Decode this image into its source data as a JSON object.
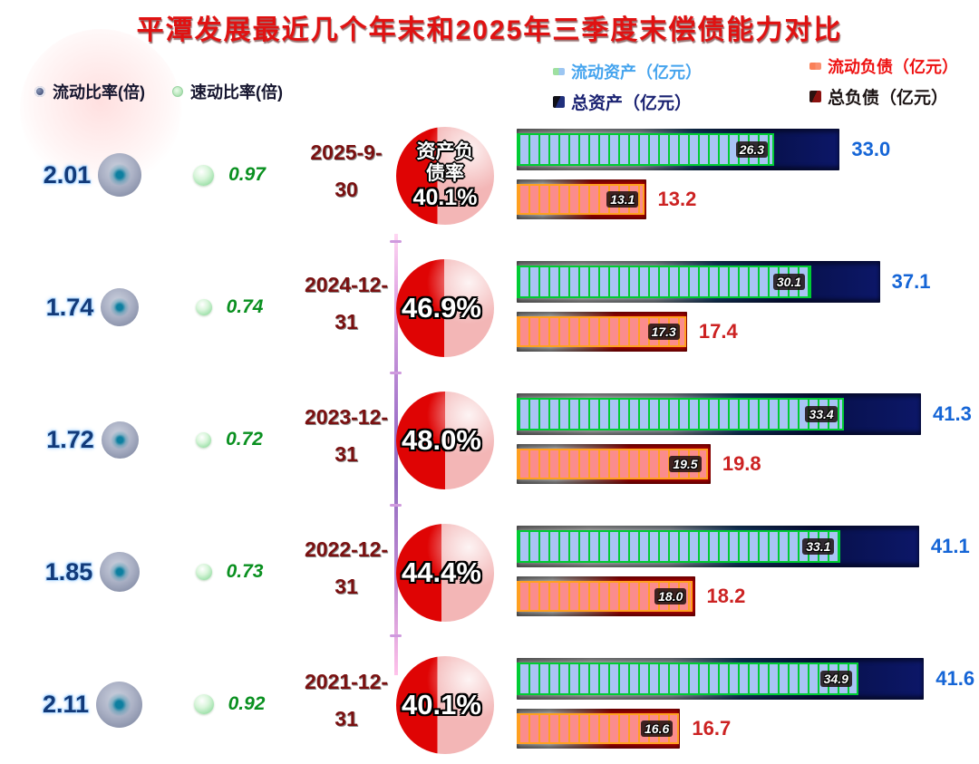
{
  "title": "平潭发展最近几个年末和2025年三季度末偿债能力对比",
  "legend": {
    "current_ratio": "流动比率(倍)",
    "quick_ratio": "速动比率(倍)",
    "current_assets": "流动资产（亿元）",
    "total_assets": "总资产（亿元）",
    "current_liabilities": "流动负债（亿元）",
    "total_liabilities": "总负债（亿元）"
  },
  "colors": {
    "title_red": "#e01212",
    "total_assets_bar": "#0c1768",
    "current_assets_fill": "#a9c4f4",
    "current_assets_stripe": "#00cc33",
    "total_liabilities_bar": "#cc0202",
    "current_liabilities_fill": "#fb8c8c",
    "current_liabilities_stripe": "#ffa020",
    "pie_red": "#df0404",
    "pie_pink": "#f3b6b6",
    "quick_ratio_green": "#0a9020",
    "current_ratio_navy": "#123a7a",
    "date_maroon": "#7a1010",
    "asset_total_label_blue": "#1565d6",
    "liab_total_label_red": "#cc2222"
  },
  "rows": [
    {
      "date_line1": "2025-9-",
      "date_line2": "30",
      "current_ratio": "2.01",
      "quick_ratio": "0.97",
      "pie_caption_line1": "资产负",
      "pie_caption_line2": "债率",
      "debt_ratio": "40.1%",
      "current_assets": "26.3",
      "total_assets": "33.0",
      "current_liabilities": "13.1",
      "total_liabilities": "13.2"
    },
    {
      "date_line1": "2024-12-",
      "date_line2": "31",
      "current_ratio": "1.74",
      "quick_ratio": "0.74",
      "pie_caption_line1": "",
      "pie_caption_line2": "",
      "debt_ratio": "46.9%",
      "current_assets": "30.1",
      "total_assets": "37.1",
      "current_liabilities": "17.3",
      "total_liabilities": "17.4"
    },
    {
      "date_line1": "2023-12-",
      "date_line2": "31",
      "current_ratio": "1.72",
      "quick_ratio": "0.72",
      "pie_caption_line1": "",
      "pie_caption_line2": "",
      "debt_ratio": "48.0%",
      "current_assets": "33.4",
      "total_assets": "41.3",
      "current_liabilities": "19.5",
      "total_liabilities": "19.8"
    },
    {
      "date_line1": "2022-12-",
      "date_line2": "31",
      "current_ratio": "1.85",
      "quick_ratio": "0.73",
      "pie_caption_line1": "",
      "pie_caption_line2": "",
      "debt_ratio": "44.4%",
      "current_assets": "33.1",
      "total_assets": "41.1",
      "current_liabilities": "18.0",
      "total_liabilities": "18.2"
    },
    {
      "date_line1": "2021-12-",
      "date_line2": "31",
      "current_ratio": "2.11",
      "quick_ratio": "0.92",
      "pie_caption_line1": "",
      "pie_caption_line2": "",
      "debt_ratio": "40.1%",
      "current_assets": "34.9",
      "total_assets": "41.6",
      "current_liabilities": "16.6",
      "total_liabilities": "16.7"
    }
  ],
  "chart_data": {
    "type": "bar",
    "title": "平潭发展最近几个年末和2025年三季度末偿债能力对比",
    "categories": [
      "2025-9-30",
      "2024-12-31",
      "2023-12-31",
      "2022-12-31",
      "2021-12-31"
    ],
    "series": [
      {
        "name": "流动比率(倍)",
        "values": [
          2.01,
          1.74,
          1.72,
          1.85,
          2.11
        ]
      },
      {
        "name": "速动比率(倍)",
        "values": [
          0.97,
          0.74,
          0.72,
          0.73,
          0.92
        ]
      },
      {
        "name": "资产负债率",
        "values": [
          40.1,
          46.9,
          48.0,
          44.4,
          40.1
        ],
        "unit": "%"
      },
      {
        "name": "流动资产（亿元）",
        "values": [
          26.3,
          30.1,
          33.4,
          33.1,
          34.9
        ]
      },
      {
        "name": "总资产（亿元）",
        "values": [
          33.0,
          37.1,
          41.3,
          41.1,
          41.6
        ]
      },
      {
        "name": "流动负债（亿元）",
        "values": [
          13.1,
          17.3,
          19.5,
          18.0,
          16.6
        ]
      },
      {
        "name": "总负债（亿元）",
        "values": [
          13.2,
          17.4,
          19.8,
          18.2,
          16.7
        ]
      }
    ],
    "orientation": "horizontal",
    "xlim": [
      0,
      42.5
    ],
    "grid": false,
    "legend_position": "top"
  }
}
